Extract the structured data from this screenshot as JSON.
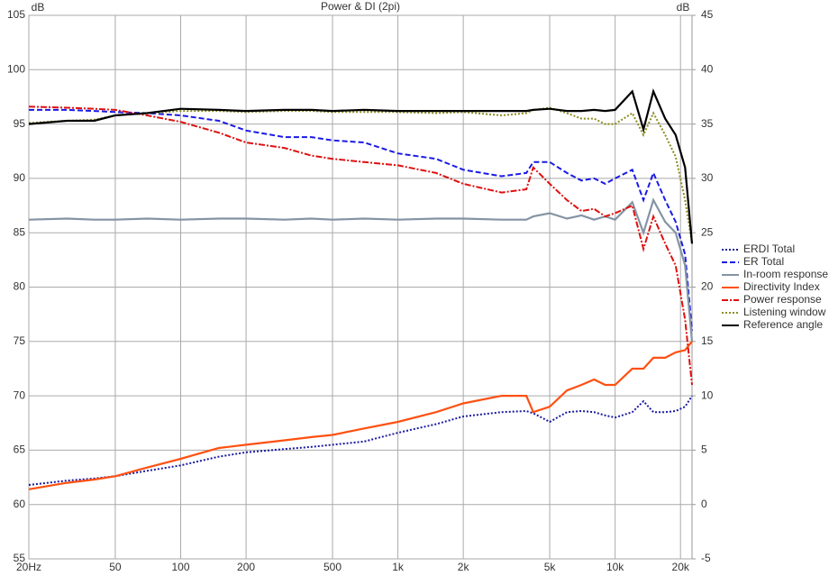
{
  "chart_data": {
    "type": "line",
    "title": "Power & DI (2pi)",
    "ylabel": "dB",
    "y2label": "dB",
    "xscale": "log",
    "grid": true,
    "legend": "right",
    "xlim": [
      20,
      22600
    ],
    "ylim": [
      55,
      105
    ],
    "y2lim": [
      -5,
      45
    ],
    "xticks": [
      {
        "value": 20,
        "label": "20Hz"
      },
      50,
      100,
      200,
      500,
      {
        "value": 1000,
        "label": "1k"
      },
      {
        "value": 2000,
        "label": "2k"
      },
      {
        "value": 5000,
        "label": "5k"
      },
      {
        "value": 10000,
        "label": "10k"
      },
      {
        "value": 20000,
        "label": "20k"
      }
    ],
    "yticks": [
      55,
      60,
      65,
      70,
      75,
      80,
      85,
      90,
      95,
      100,
      105
    ],
    "y2ticks": [
      -5,
      0,
      5,
      10,
      15,
      20,
      25,
      30,
      35,
      40,
      45
    ],
    "x": [
      20,
      30,
      40,
      50,
      70,
      100,
      150,
      200,
      300,
      400,
      500,
      700,
      1000,
      1500,
      2000,
      3000,
      3900,
      4200,
      5000,
      6000,
      7000,
      8000,
      9000,
      10000,
      12000,
      13500,
      15000,
      17000,
      19000,
      21000,
      22600
    ],
    "series": [
      {
        "name": "ERDI Total",
        "color": "#1a1aa0",
        "style": "dotted",
        "axis": "y2",
        "values": [
          1.8,
          2.2,
          2.4,
          2.6,
          3.1,
          3.6,
          4.4,
          4.8,
          5.1,
          5.3,
          5.5,
          5.8,
          6.6,
          7.4,
          8.1,
          8.5,
          8.6,
          8.4,
          7.6,
          8.5,
          8.6,
          8.5,
          8.2,
          8,
          8.5,
          9.5,
          8.5,
          8.5,
          8.6,
          9,
          10
        ]
      },
      {
        "name": "ER Total",
        "color": "#1a1ae6",
        "style": "dashed",
        "values": [
          96.3,
          96.3,
          96.2,
          96.1,
          96,
          95.8,
          95.3,
          94.4,
          93.8,
          93.8,
          93.5,
          93.3,
          92.3,
          91.8,
          90.8,
          90.2,
          90.5,
          91.5,
          91.5,
          90.5,
          89.8,
          90,
          89.5,
          90,
          90.8,
          88,
          90.5,
          88,
          86,
          83,
          76
        ]
      },
      {
        "name": "In-room response",
        "color": "#8494a4",
        "style": "solid",
        "values": [
          86.2,
          86.3,
          86.2,
          86.2,
          86.3,
          86.2,
          86.3,
          86.3,
          86.2,
          86.3,
          86.2,
          86.3,
          86.2,
          86.3,
          86.3,
          86.2,
          86.2,
          86.5,
          86.8,
          86.3,
          86.6,
          86.2,
          86.5,
          86.2,
          87.8,
          85,
          88,
          86,
          85,
          82,
          75
        ]
      },
      {
        "name": "Directivity Index",
        "color": "#ff5010",
        "style": "solid",
        "axis": "y2",
        "values": [
          1.4,
          2,
          2.3,
          2.6,
          3.4,
          4.2,
          5.2,
          5.5,
          5.9,
          6.2,
          6.4,
          7,
          7.6,
          8.5,
          9.3,
          10,
          10,
          8.5,
          9,
          10.5,
          11,
          11.5,
          11,
          11,
          12.5,
          12.5,
          13.5,
          13.5,
          14,
          14.2,
          15
        ]
      },
      {
        "name": "Power response",
        "color": "#e01010",
        "style": "dashdot",
        "values": [
          96.6,
          96.5,
          96.4,
          96.3,
          95.8,
          95.2,
          94.2,
          93.3,
          92.8,
          92.1,
          91.8,
          91.5,
          91.2,
          90.5,
          89.5,
          88.7,
          89,
          91,
          89.5,
          88,
          87,
          87.2,
          86.5,
          86.8,
          87.5,
          83.5,
          86.5,
          84,
          82,
          77,
          71
        ]
      },
      {
        "name": "Listening window",
        "color": "#8c8c1e",
        "style": "dotted",
        "values": [
          95.1,
          95.3,
          95.4,
          95.8,
          96,
          96.2,
          96.2,
          96.1,
          96.2,
          96.2,
          96.1,
          96.1,
          96.1,
          96,
          96.1,
          95.8,
          96,
          96.3,
          96.5,
          96,
          95.5,
          95.5,
          95,
          95,
          96,
          94,
          96,
          94,
          92,
          88,
          84
        ]
      },
      {
        "name": "Reference angle",
        "color": "#000000",
        "style": "solid",
        "values": [
          95,
          95.3,
          95.3,
          95.8,
          96,
          96.4,
          96.3,
          96.2,
          96.3,
          96.3,
          96.2,
          96.3,
          96.2,
          96.2,
          96.2,
          96.2,
          96.2,
          96.3,
          96.4,
          96.2,
          96.2,
          96.3,
          96.2,
          96.3,
          98,
          94.5,
          98,
          95.5,
          94,
          91,
          84
        ]
      }
    ]
  }
}
